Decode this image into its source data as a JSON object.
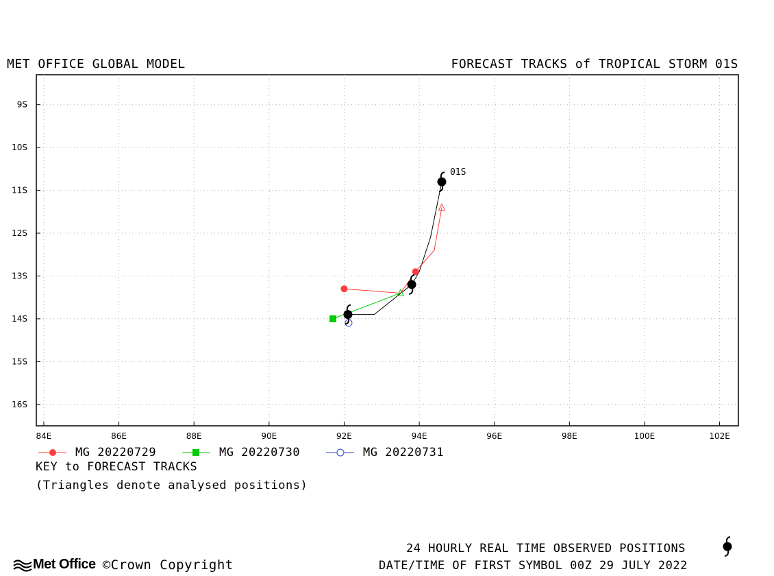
{
  "header": {
    "left_title": "MET OFFICE GLOBAL MODEL",
    "right_title": "FORECAST TRACKS of TROPICAL STORM 01S"
  },
  "chart_data": {
    "type": "scatter",
    "xaxis": {
      "range": [
        83.8,
        102.5
      ],
      "ticks": [
        84,
        86,
        88,
        90,
        92,
        94,
        96,
        98,
        100,
        102
      ],
      "tick_labels": [
        "84E",
        "86E",
        "88E",
        "90E",
        "92E",
        "94E",
        "96E",
        "98E",
        "100E",
        "102E"
      ]
    },
    "yaxis": {
      "range": [
        -16.5,
        -8.3
      ],
      "ticks": [
        -9,
        -10,
        -11,
        -12,
        -13,
        -14,
        -15,
        -16
      ],
      "tick_labels": [
        "9S",
        "10S",
        "11S",
        "12S",
        "13S",
        "14S",
        "15S",
        "16S"
      ]
    },
    "grid": true,
    "observed": {
      "label": "01S",
      "color": "#000000",
      "points": [
        [
          92.1,
          -13.9
        ],
        [
          92.8,
          -13.9
        ],
        [
          93.8,
          -13.2
        ],
        [
          94.0,
          -12.9
        ],
        [
          94.3,
          -12.1
        ],
        [
          94.6,
          -10.8
        ]
      ],
      "symbols": [
        [
          92.1,
          -13.9
        ],
        [
          93.8,
          -13.2
        ],
        [
          94.6,
          -10.8
        ]
      ]
    },
    "series": [
      {
        "name": "MG 20220729",
        "color": "#ff3b3b",
        "marker": "circle-filled",
        "points": [
          [
            92.0,
            -13.3
          ],
          [
            93.5,
            -13.4
          ],
          [
            93.9,
            -12.9
          ],
          [
            94.4,
            -12.4
          ],
          [
            94.6,
            -11.4
          ]
        ],
        "start_marker": [
          92.0,
          -13.3
        ],
        "filled_markers": [
          [
            93.9,
            -12.9
          ]
        ],
        "analysed_triangles": [
          [
            94.6,
            -11.4
          ]
        ]
      },
      {
        "name": "MG 20220730",
        "color": "#00cc00",
        "marker": "square-filled",
        "points": [
          [
            91.7,
            -14.0
          ],
          [
            93.5,
            -13.4
          ]
        ],
        "start_marker": [
          91.7,
          -14.0
        ],
        "filled_markers": [],
        "analysed_triangles": [
          [
            93.5,
            -13.4
          ]
        ]
      },
      {
        "name": "MG 20220731",
        "color": "#3344cc",
        "marker": "circle-open",
        "points": [
          [
            92.1,
            -14.0
          ]
        ],
        "start_marker": [
          92.1,
          -14.0
        ],
        "filled_markers": [],
        "analysed_triangles": []
      }
    ]
  },
  "legend": {
    "key_title": "KEY to FORECAST TRACKS",
    "key_note": "(Triangles denote analysed positions)"
  },
  "footer": {
    "logo_text": "Met Office",
    "copyright": "©Crown Copyright",
    "observed_note": "24 HOURLY REAL TIME OBSERVED POSITIONS",
    "datetime_note": "DATE/TIME OF FIRST SYMBOL 00Z 29 JULY 2022"
  }
}
